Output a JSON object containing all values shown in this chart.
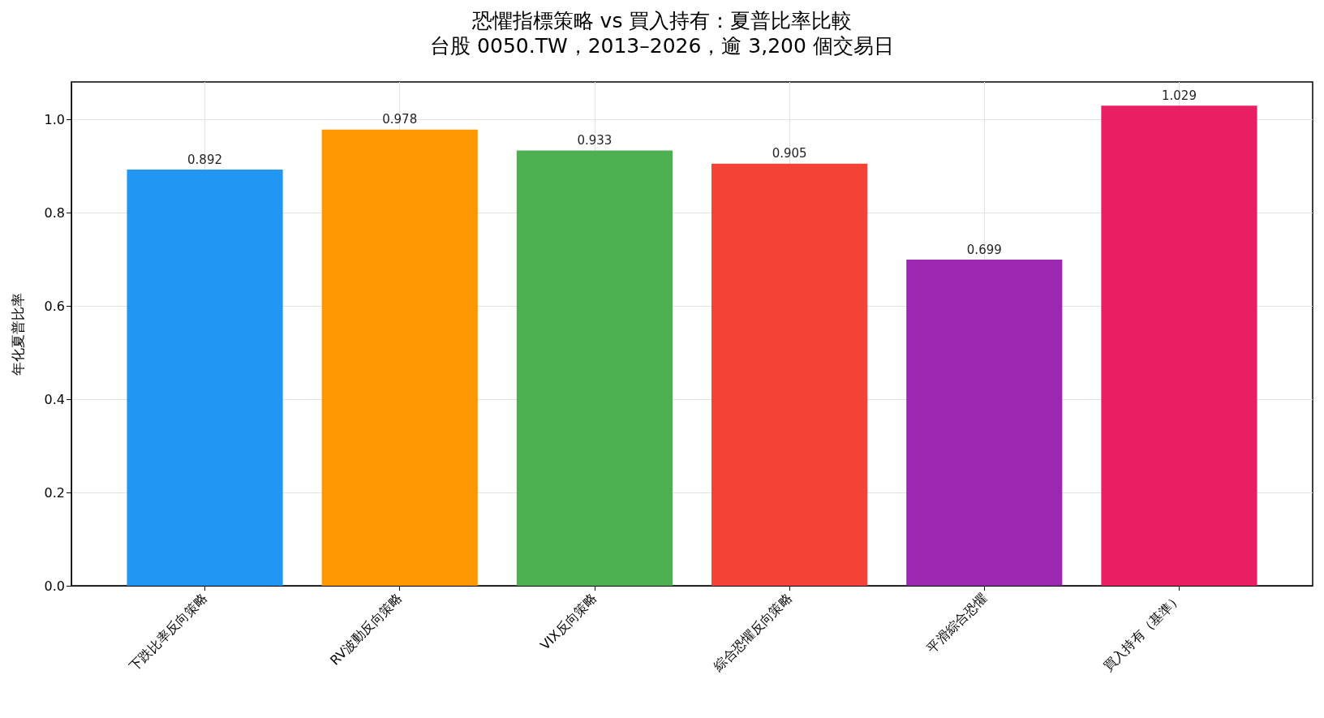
{
  "chart_data": {
    "type": "bar",
    "title": "恐懼指標策略 vs 買入持有：夏普比率比較",
    "subtitle": "台股 0050.TW，2013–2026，逾 3,200 個交易日",
    "ylabel": "年化夏普比率",
    "categories": [
      "下跌比率反向策略",
      "RV波動反向策略",
      "VIX反向策略",
      "綜合恐懼反向策略",
      "平滑綜合恐懼",
      "買入持有（基準）"
    ],
    "values": [
      0.892,
      0.978,
      0.933,
      0.905,
      0.699,
      1.029
    ],
    "colors": [
      "#2196f3",
      "#ff9800",
      "#4caf50",
      "#f44336",
      "#9c27b0",
      "#e91e63"
    ],
    "ylim": [
      0,
      1.08
    ],
    "yticks": [
      {
        "value": 0,
        "label": "0.0"
      },
      {
        "value": 0.2,
        "label": "0.2"
      },
      {
        "value": 0.4,
        "label": "0.4"
      },
      {
        "value": 0.6,
        "label": "0.6"
      },
      {
        "value": 0.8,
        "label": "0.8"
      },
      {
        "value": 1,
        "label": "1.0"
      }
    ],
    "grid": true,
    "data_labels": true
  }
}
